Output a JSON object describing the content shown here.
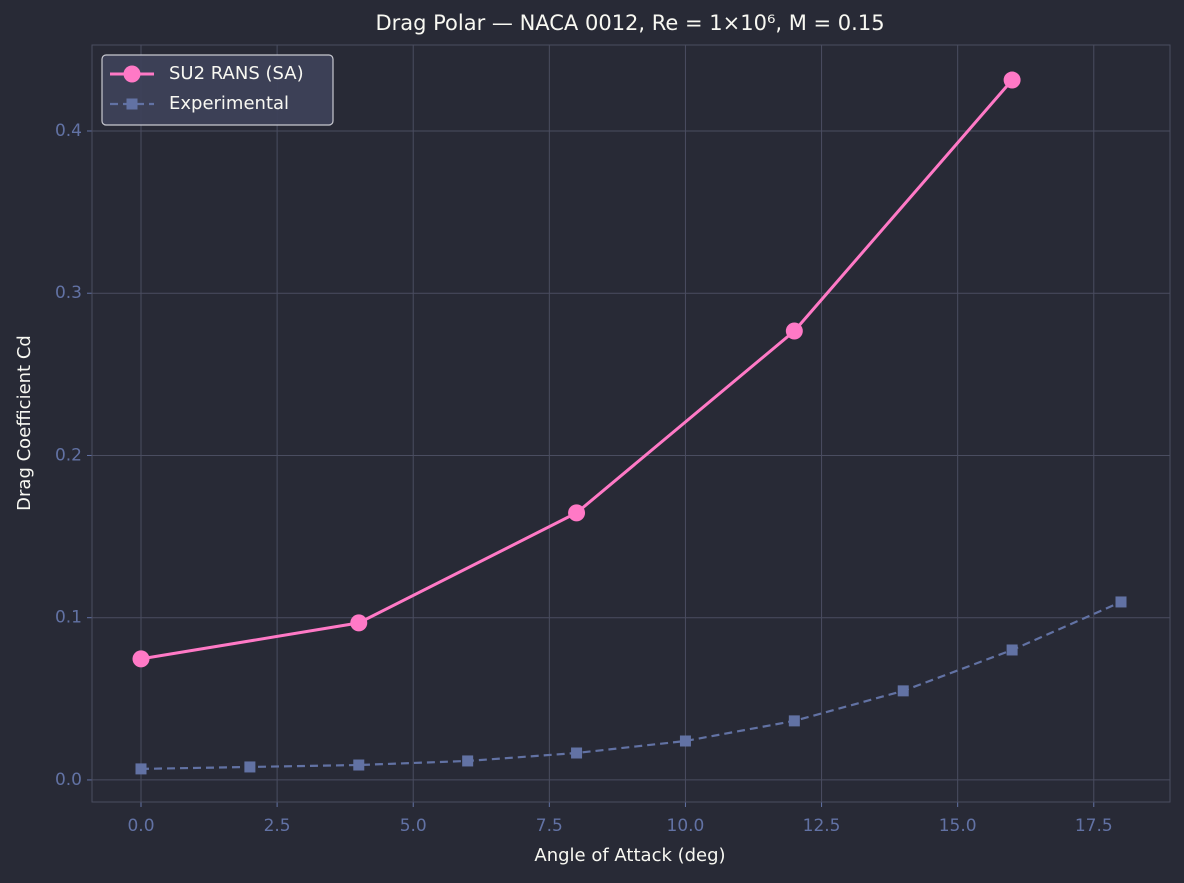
{
  "chart_data": {
    "type": "line",
    "title": "Drag Polar — NACA 0012, Re = 1×10⁶, M = 0.15",
    "xlabel": "Angle of Attack (deg)",
    "ylabel": "Drag Coefficient Cd",
    "series": [
      {
        "name": "SU2 RANS (SA)",
        "color": "#ff79c6",
        "marker": "circle",
        "dash": false,
        "x": [
          0,
          4,
          8,
          12,
          16
        ],
        "values": [
          0.0746,
          0.0968,
          0.1646,
          0.2767,
          0.4314
        ]
      },
      {
        "name": "Experimental",
        "color": "#6272a4",
        "marker": "square",
        "dash": true,
        "x": [
          0,
          2,
          4,
          6,
          8,
          10,
          12,
          14,
          16,
          18
        ],
        "values": [
          0.0068,
          0.008,
          0.0092,
          0.0117,
          0.0166,
          0.024,
          0.0364,
          0.0549,
          0.0801,
          0.1097
        ]
      }
    ],
    "xlim": [
      -0.9,
      18.9
    ],
    "ylim": [
      -0.0136,
      0.453
    ],
    "xticks": [
      {
        "value": 0,
        "label": "0.0"
      },
      2.5,
      {
        "value": 5,
        "label": "5.0"
      },
      7.5,
      {
        "value": 10,
        "label": "10.0"
      },
      12.5,
      {
        "value": 15,
        "label": "15.0"
      },
      17.5
    ],
    "yticks": [
      {
        "value": 0,
        "label": "0.0"
      },
      0.1,
      0.2,
      0.3,
      0.4
    ],
    "grid": true,
    "legend": "upper left"
  }
}
